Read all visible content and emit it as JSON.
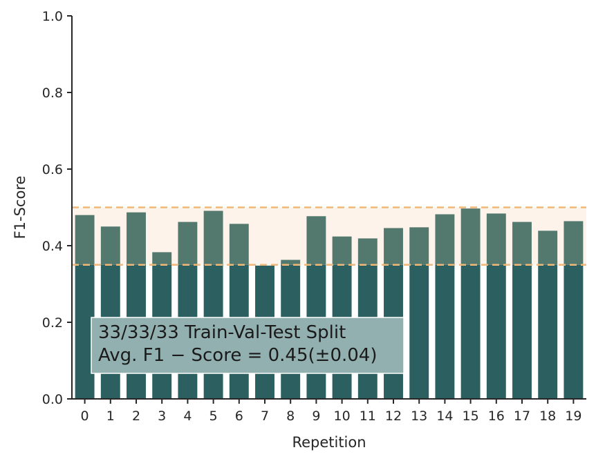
{
  "chart_data": {
    "type": "bar",
    "categories": [
      "0",
      "1",
      "2",
      "3",
      "4",
      "5",
      "6",
      "7",
      "8",
      "9",
      "10",
      "11",
      "12",
      "13",
      "14",
      "15",
      "16",
      "17",
      "18",
      "19"
    ],
    "values": [
      0.48,
      0.45,
      0.487,
      0.383,
      0.462,
      0.491,
      0.457,
      0.348,
      0.363,
      0.477,
      0.424,
      0.419,
      0.446,
      0.448,
      0.482,
      0.497,
      0.484,
      0.462,
      0.439,
      0.464
    ],
    "xlabel": "Repetition",
    "ylabel": "F1-Score",
    "ylim": [
      0,
      1.0
    ],
    "yticks": [
      "0.0",
      "0.2",
      "0.4",
      "0.6",
      "0.8",
      "1.0"
    ],
    "band": {
      "low": 0.35,
      "high": 0.5
    },
    "annotation": {
      "line1": "33/33/33 Train-Val-Test Split",
      "line2": "Avg. F1 − Score = 0.45(±0.04)"
    },
    "colors": {
      "bar": "#2c5f5f",
      "bar_in_band": "#53796f",
      "band_fill": "#fdf3ea",
      "band_line": "#f0b878",
      "axis": "#262626",
      "annotation_box": "#93b0b0"
    }
  }
}
